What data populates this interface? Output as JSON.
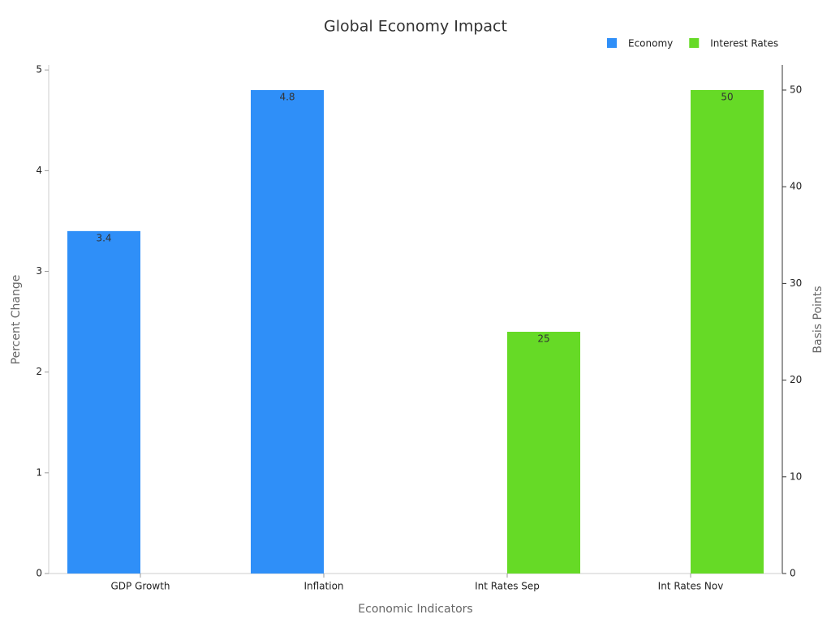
{
  "chart_data": {
    "type": "bar",
    "title": "Global Economy Impact",
    "x_label": "Economic Indicators",
    "y_label": "Percent Change",
    "y2_label": "Basis Points",
    "categories": [
      "GDP Growth",
      "Inflation",
      "Int Rates Sep",
      "Int Rates Nov"
    ],
    "series": [
      {
        "name": "Economy",
        "color": "#2f8ff8",
        "values": [
          3.4,
          4.8,
          null,
          null
        ]
      },
      {
        "name": "Interest Rates",
        "color": "#66da26",
        "values": [
          null,
          null,
          25,
          50
        ],
        "axis": "y2"
      }
    ],
    "ylim": [
      0,
      5.05
    ],
    "yticks": [
      0,
      1,
      2,
      3,
      4,
      5
    ],
    "y2lim": [
      0,
      52.6
    ],
    "y2ticks": [
      0,
      10,
      20,
      30,
      40,
      50
    ],
    "legend": "top-right",
    "grid": false
  }
}
